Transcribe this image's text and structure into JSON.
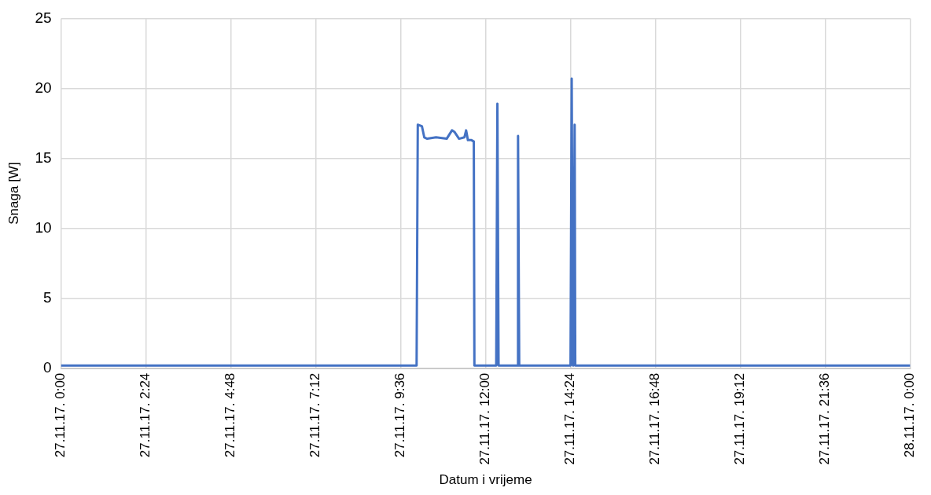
{
  "chart_data": {
    "type": "line",
    "xlabel": "Datum i vrijeme",
    "ylabel": "Snaga [W]",
    "x": [
      "--11-27T00:00",
      "--11-27T05:00",
      "--11-27T10:03",
      "--11-27T10:05",
      "--11-27T10:12",
      "--11-27T10:16",
      "--11-27T10:21",
      "--11-27T10:36",
      "--11-27T10:54",
      "--11-27T11:03",
      "--11-27T11:07",
      "--11-27T11:15",
      "--11-27T11:24",
      "--11-27T11:27",
      "--11-27T11:30",
      "--11-27T11:36",
      "--11-27T11:40",
      "--11-27T11:41",
      "--11-27T11:43",
      "--11-27T12:18",
      "--11-27T12:20",
      "--11-27T12:22",
      "--11-27T12:54",
      "--11-27T12:55",
      "--11-27T12:57",
      "--11-27T12:59",
      "--11-27T14:24",
      "--11-27T14:26",
      "--11-27T14:28",
      "--11-27T14:29",
      "--11-27T14:31",
      "--11-27T14:32",
      "--11-27T14:34",
      "--11-27T18:00",
      "--11-28T00:00"
    ],
    "series": [
      {
        "color": "#4472c4",
        "values": [
          0.2,
          0.2,
          0.2,
          17.4,
          17.3,
          16.5,
          16.4,
          16.5,
          16.4,
          17.0,
          16.9,
          16.4,
          16.5,
          17.0,
          16.3,
          16.3,
          16.2,
          0.2,
          0.2,
          0.2,
          18.9,
          0.2,
          0.2,
          16.6,
          0.2,
          0.2,
          0.2,
          20.7,
          0.2,
          0.2,
          17.4,
          0.2,
          0.2,
          0.2,
          0.2
        ]
      }
    ],
    "xlim": [
      "--11-27T00:00",
      "--11-28T00:00"
    ],
    "xticks": [
      {
        "value": "--11-27T00:00",
        "label": "27.11.17. 0:00"
      },
      {
        "value": "--11-27T02:24",
        "label": "27.11.17. 2:24"
      },
      {
        "value": "--11-27T04:48",
        "label": "27.11.17. 4:48"
      },
      {
        "value": "--11-27T07:12",
        "label": "27.11.17. 7:12"
      },
      {
        "value": "--11-27T09:36",
        "label": "27.11.17. 9:36"
      },
      {
        "value": "--11-27T12:00",
        "label": "27.11.17. 12:00"
      },
      {
        "value": "--11-27T14:24",
        "label": "27.11.17. 14:24"
      },
      {
        "value": "--11-27T16:48",
        "label": "27.11.17. 16:48"
      },
      {
        "value": "--11-27T19:12",
        "label": "27.11.17. 19:12"
      },
      {
        "value": "--11-27T21:36",
        "label": "27.11.17. 21:36"
      },
      {
        "value": "--11-28T00:00",
        "label": "28.11.17. 0:00"
      }
    ],
    "ylim": [
      0,
      25
    ],
    "yticks": [
      0,
      5,
      10,
      15,
      20,
      25
    ],
    "grid": true,
    "legend": false,
    "marker": "none",
    "line_style": "solid"
  }
}
